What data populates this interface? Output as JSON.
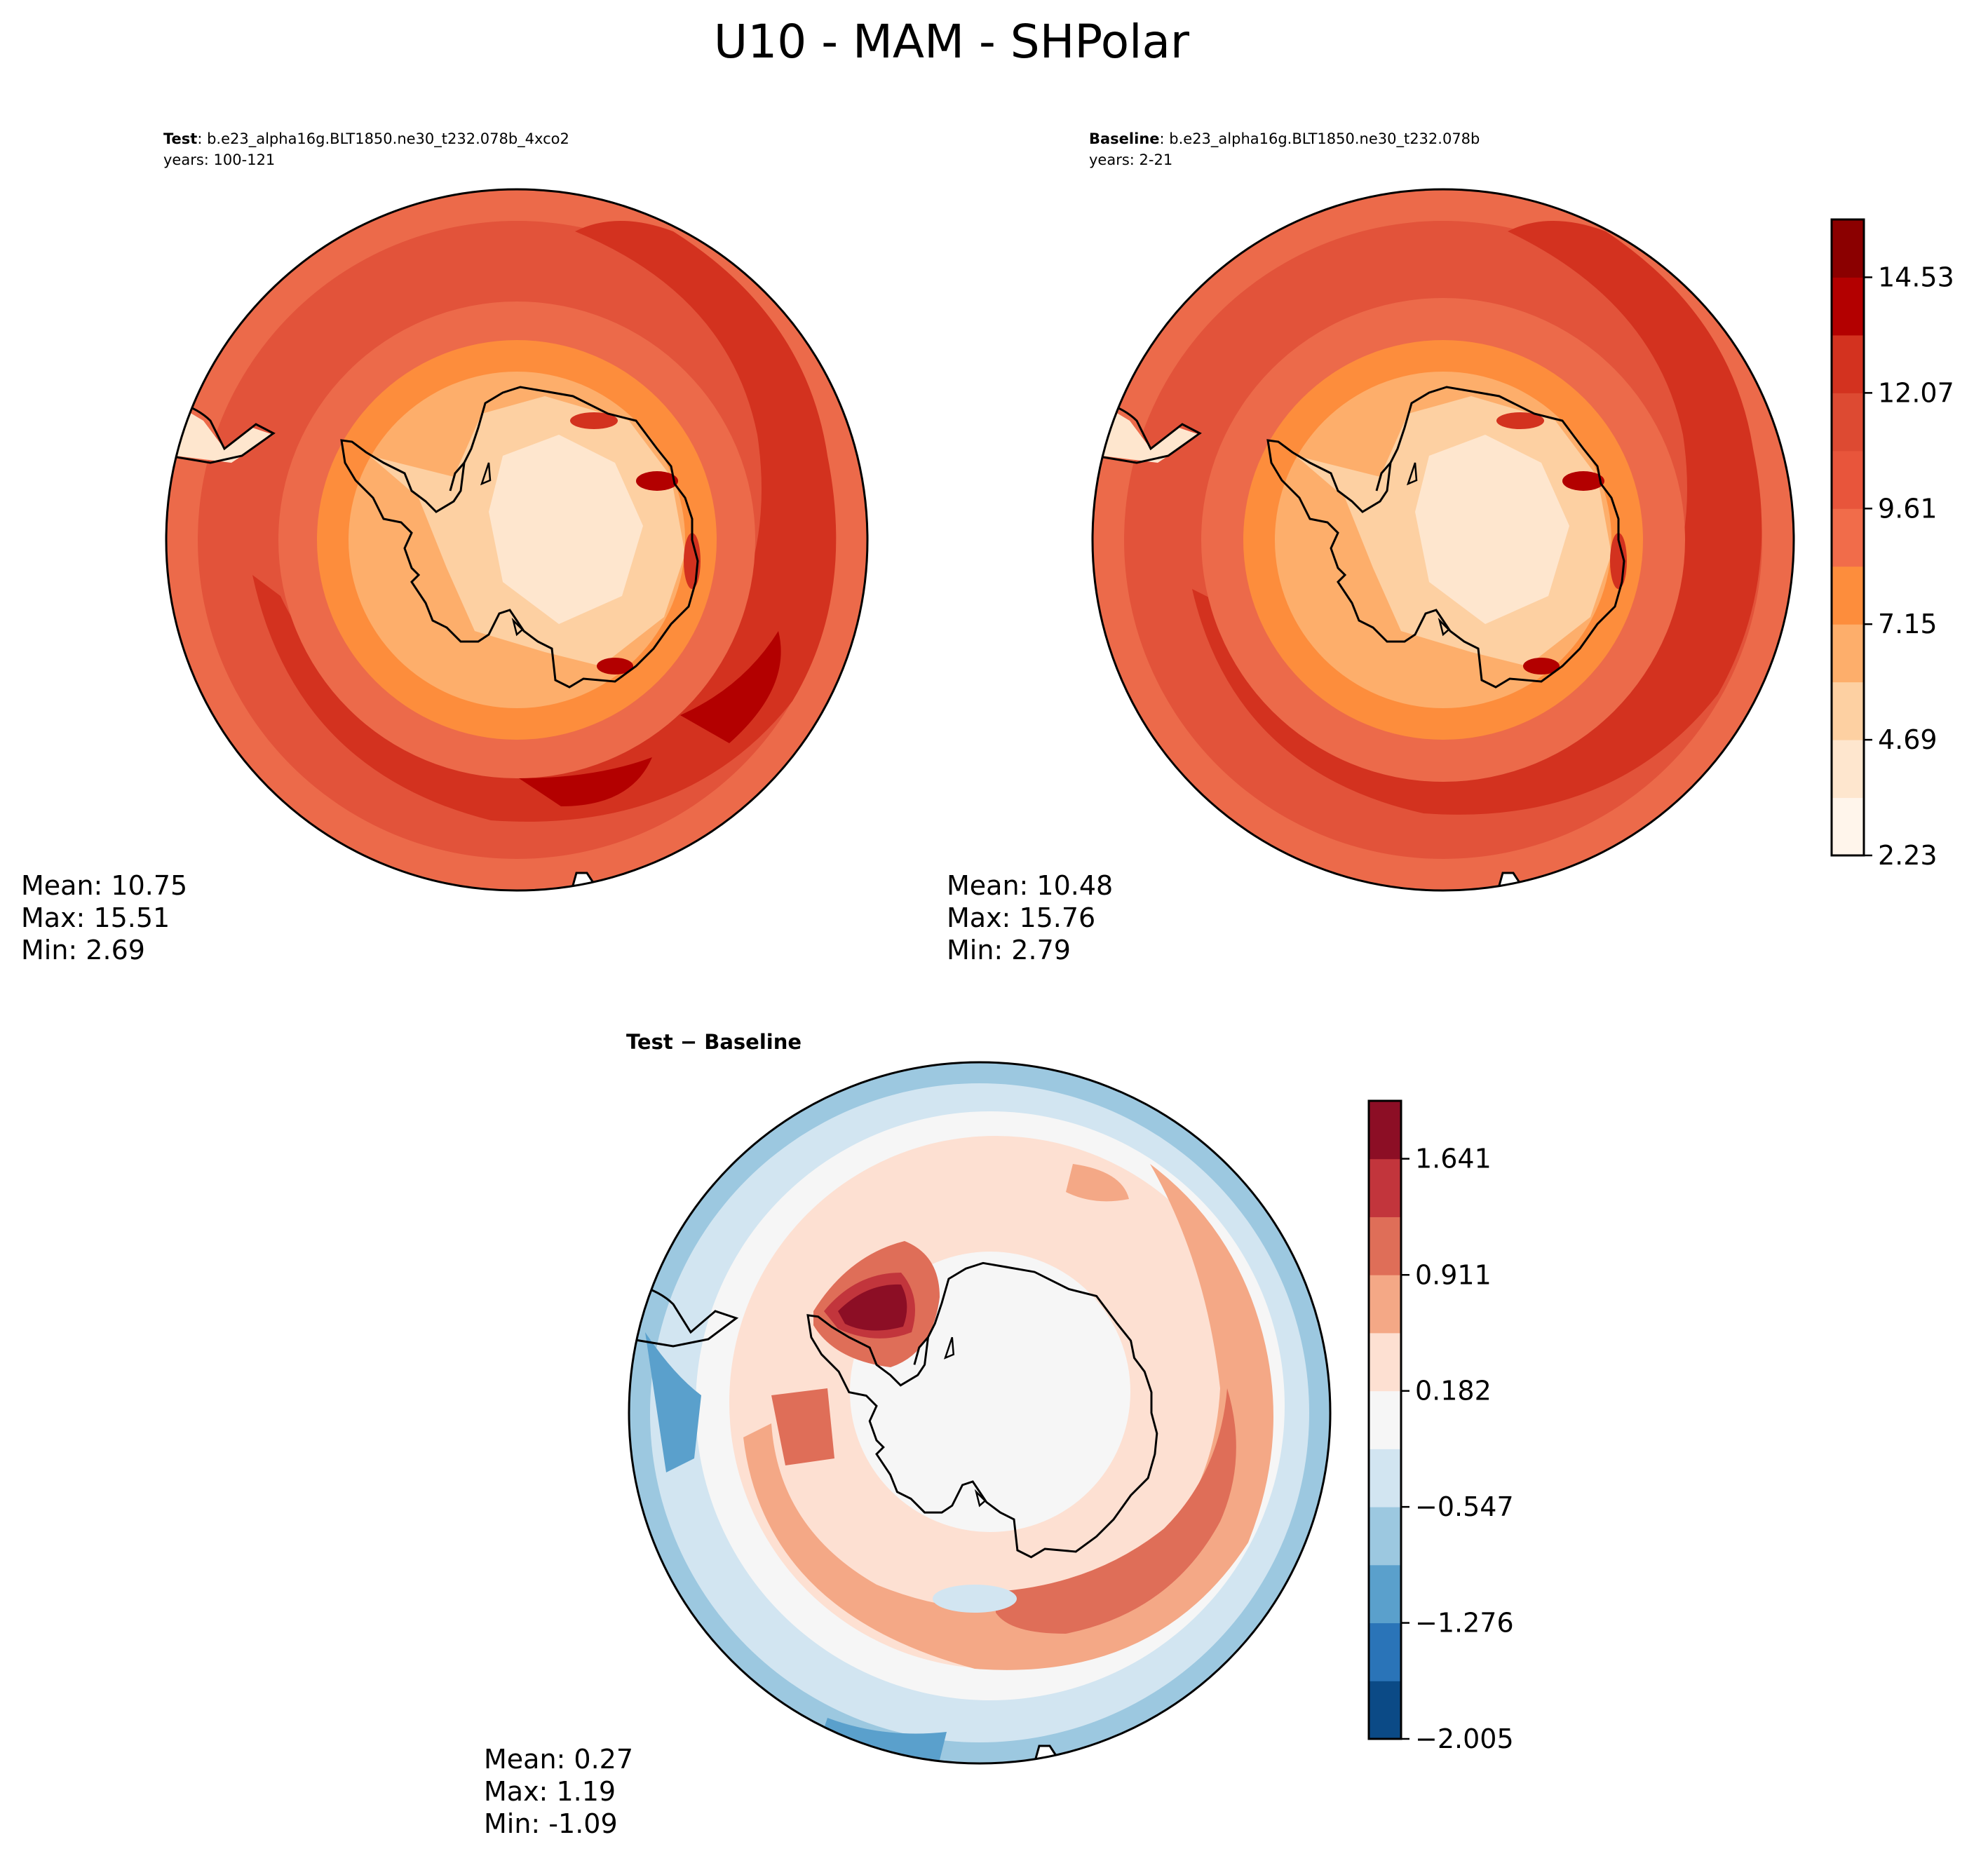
{
  "figure": {
    "title": "U10 - MAM - SHPolar"
  },
  "chart_data": [
    {
      "type": "heatmap",
      "projection": "south-polar-stereographic",
      "title_label": "Test",
      "title_text": ": b.e23_alpha16g.BLT1850.ne30_t232.078b_4xco2",
      "years": "years: 100-121",
      "stats": {
        "mean": "Mean: 10.75",
        "max": "Max: 15.51",
        "min": "Min:  2.69"
      },
      "colorscale": "sequential-reds"
    },
    {
      "type": "heatmap",
      "projection": "south-polar-stereographic",
      "title_label": "Baseline",
      "title_text": ": b.e23_alpha16g.BLT1850.ne30_t232.078b",
      "years": "years: 2-21",
      "stats": {
        "mean": "Mean: 10.48",
        "max": "Max: 15.76",
        "min": "Min:  2.79"
      },
      "colorscale": "sequential-reds",
      "colorbar": {
        "ticks": [
          "2.23",
          "4.69",
          "7.15",
          "9.61",
          "12.07",
          "14.53"
        ],
        "tick_values": [
          2.23,
          4.69,
          7.15,
          9.61,
          12.07,
          14.53
        ],
        "range": [
          2.23,
          15.76
        ],
        "bins": 11,
        "colors": [
          "#fff5eb",
          "#fee6ce",
          "#fdd0a2",
          "#fdae6b",
          "#fd8d3c",
          "#f16c4a",
          "#e8553b",
          "#dd4a32",
          "#d3321f",
          "#b30000",
          "#8b0000"
        ]
      }
    },
    {
      "type": "heatmap",
      "projection": "south-polar-stereographic",
      "title_label": "Test − Baseline",
      "stats": {
        "mean": "Mean:  0.27",
        "max": "Max:  1.19",
        "min": "Min: -1.09"
      },
      "colorscale": "diverging-RdBu",
      "colorbar": {
        "ticks": [
          "−2.005",
          "−1.276",
          "−0.547",
          "0.182",
          "0.911",
          "1.641"
        ],
        "tick_values": [
          -2.005,
          -1.276,
          -0.547,
          0.182,
          0.911,
          1.641
        ],
        "range": [
          -2.005,
          2.005
        ],
        "bins": 11,
        "colors": [
          "#0b4a86",
          "#2a74b8",
          "#5aa0cc",
          "#9cc8e0",
          "#d2e5f1",
          "#f6f6f6",
          "#fde0d2",
          "#f4a886",
          "#df6e58",
          "#c2353c",
          "#8c0e25"
        ]
      }
    }
  ]
}
